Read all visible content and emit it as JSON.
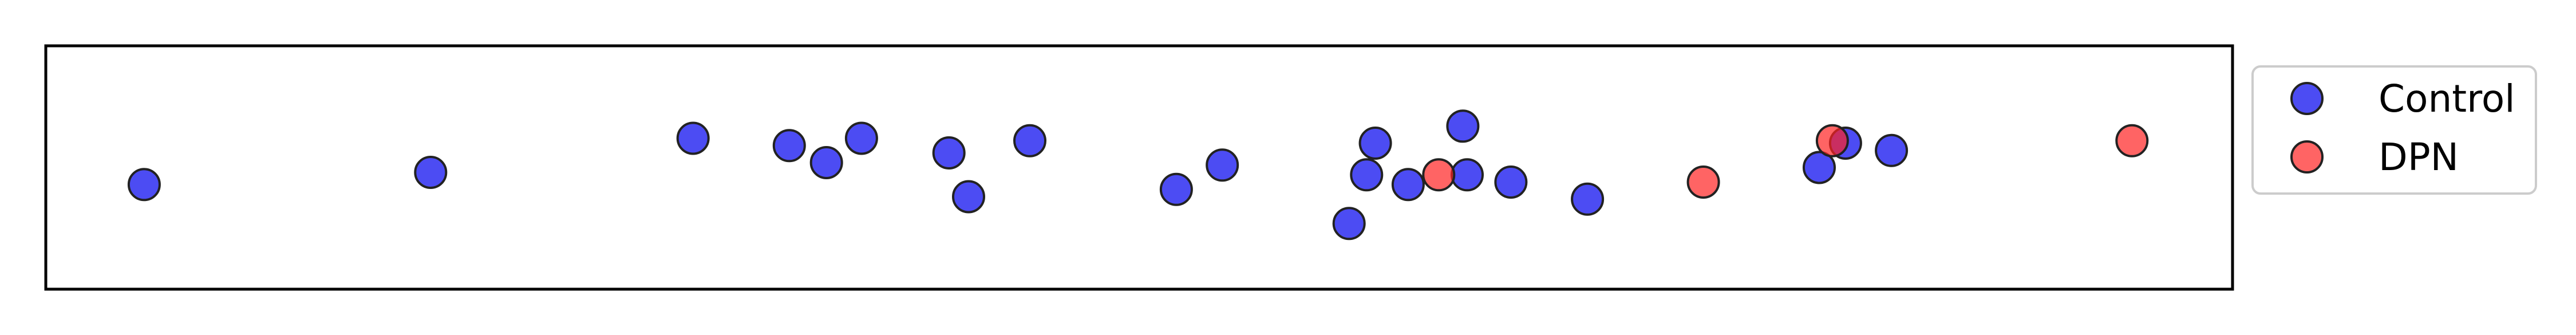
{
  "chart_data": {
    "type": "scatter",
    "title": "",
    "xlabel": "",
    "ylabel": "",
    "xlim": [
      0,
      100
    ],
    "ylim": [
      0,
      1
    ],
    "xticks": "none",
    "yticks": "none",
    "grid": false,
    "legend": {
      "placement": "outside-right-top"
    },
    "series": [
      {
        "name": "Control",
        "color": "#0000ee",
        "marker_edge": "#222222",
        "points": [
          {
            "x": 4.5,
            "y": 0.43
          },
          {
            "x": 17.6,
            "y": 0.48
          },
          {
            "x": 29.6,
            "y": 0.62
          },
          {
            "x": 34.0,
            "y": 0.59
          },
          {
            "x": 35.7,
            "y": 0.52
          },
          {
            "x": 37.3,
            "y": 0.62
          },
          {
            "x": 41.3,
            "y": 0.56
          },
          {
            "x": 42.2,
            "y": 0.38
          },
          {
            "x": 45.0,
            "y": 0.61
          },
          {
            "x": 51.7,
            "y": 0.41
          },
          {
            "x": 53.8,
            "y": 0.51
          },
          {
            "x": 59.6,
            "y": 0.27
          },
          {
            "x": 60.4,
            "y": 0.47
          },
          {
            "x": 60.8,
            "y": 0.6
          },
          {
            "x": 62.3,
            "y": 0.43
          },
          {
            "x": 64.8,
            "y": 0.67
          },
          {
            "x": 65.0,
            "y": 0.47
          },
          {
            "x": 67.0,
            "y": 0.44
          },
          {
            "x": 70.5,
            "y": 0.37
          },
          {
            "x": 81.1,
            "y": 0.5
          },
          {
            "x": 82.3,
            "y": 0.6
          },
          {
            "x": 84.4,
            "y": 0.57
          }
        ]
      },
      {
        "name": "DPN",
        "color": "#ff2222",
        "marker_edge": "#222222",
        "points": [
          {
            "x": 63.7,
            "y": 0.47
          },
          {
            "x": 75.8,
            "y": 0.44
          },
          {
            "x": 81.7,
            "y": 0.61
          },
          {
            "x": 95.4,
            "y": 0.61
          }
        ]
      }
    ]
  }
}
